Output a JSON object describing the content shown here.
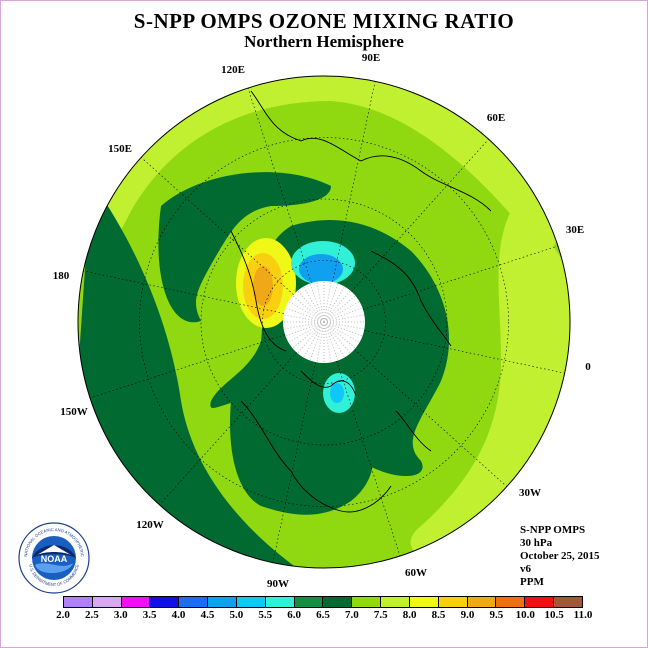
{
  "title": "S-NPP OMPS OZONE MIXING RATIO",
  "subtitle": "Northern Hemisphere",
  "longitude_labels": [
    "90E",
    "60E",
    "30E",
    "0",
    "30W",
    "60W",
    "90W",
    "120W",
    "150W",
    "180",
    "150E",
    "120E"
  ],
  "info": {
    "instrument": "S-NPP OMPS",
    "level": "30 hPa",
    "date": "October 25, 2015",
    "version": "v6",
    "units": "PPM"
  },
  "logo": {
    "text": "NOAA",
    "arc_top": "NATIONAL OCEANIC AND ATMOSPHERIC",
    "arc_bottom": "ADMINISTRATION",
    "arc_right": "U.S. DEPARTMENT OF COMMERCE"
  },
  "colorbar": {
    "ticks": [
      "2.0",
      "2.5",
      "3.0",
      "3.5",
      "4.0",
      "4.5",
      "5.0",
      "5.5",
      "6.0",
      "6.5",
      "7.0",
      "7.5",
      "8.0",
      "8.5",
      "9.0",
      "9.5",
      "10.0",
      "10.5",
      "11.0"
    ],
    "colors": [
      "#b080ff",
      "#d8a8f0",
      "#f010f0",
      "#1010e0",
      "#1870f0",
      "#10a0f0",
      "#10c8f8",
      "#30f0d8",
      "#109040",
      "#006a30",
      "#90d810",
      "#c0f030",
      "#f0f818",
      "#f8d010",
      "#f0a818",
      "#f07010",
      "#f01010",
      "#a05838"
    ]
  },
  "map_colors": {
    "background": "#90d810",
    "dark": "#006a30",
    "mid": "#109040",
    "light": "#c0f030",
    "yellow": "#f0f818",
    "orange": "#f8d010",
    "dark_orange": "#f0a818",
    "cyan": "#30f0d8",
    "blue": "#10c8f8",
    "deep_blue": "#10a0f0",
    "pole": "#ffffff"
  }
}
